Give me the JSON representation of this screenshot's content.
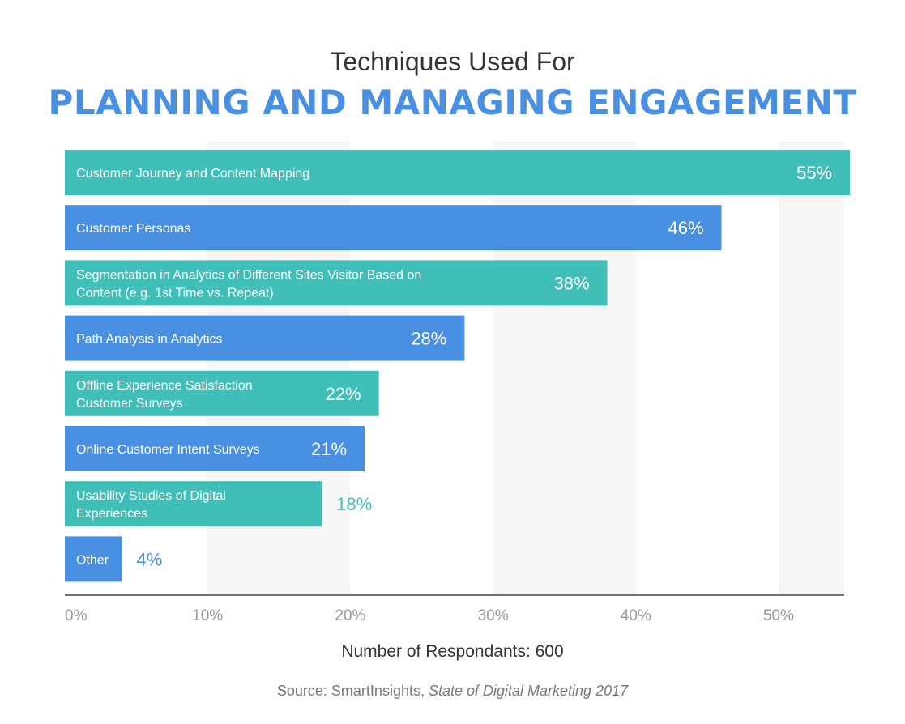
{
  "colors": {
    "teal": "#3fbfb7",
    "blue": "#4a90e2",
    "band": "#f6f6f6",
    "axis": "#444444",
    "tick_text": "#999999"
  },
  "footer": {
    "respondents": "Number of Respondants: 600",
    "source_prefix": "Source: SmartInsights, ",
    "source_publication": "State of Digital Marketing 2017"
  },
  "chart_data": {
    "type": "bar",
    "orientation": "horizontal",
    "title": "Techniques Used For",
    "subtitle": "PLANNING AND MANAGING ENGAGEMENT",
    "xlim": [
      0,
      55
    ],
    "xticks": [
      0,
      10,
      20,
      30,
      40,
      50
    ],
    "xtick_labels": [
      "0%",
      "10%",
      "20%",
      "30%",
      "40%",
      "50%"
    ],
    "grid": "alternating vertical bands",
    "categories": [
      [
        "Customer Journey and Content Mapping"
      ],
      [
        "Customer Personas"
      ],
      [
        "Segmentation in Analytics of Different Sites Visitor Based on",
        "Content (e.g. 1st Time vs. Repeat)"
      ],
      [
        "Path Analysis in Analytics"
      ],
      [
        "Offline Experience Satisfaction",
        "Customer Surveys"
      ],
      [
        "Online Customer Intent Surveys"
      ],
      [
        "Usability Studies of Digital",
        "Experiences"
      ],
      [
        "Other"
      ]
    ],
    "values": [
      55,
      46,
      38,
      28,
      22,
      21,
      18,
      4
    ],
    "value_labels": [
      "55%",
      "46%",
      "38%",
      "28%",
      "22%",
      "21%",
      "18%",
      "4%"
    ],
    "bar_colors": [
      "teal",
      "blue",
      "teal",
      "blue",
      "teal",
      "blue",
      "teal",
      "blue"
    ]
  }
}
